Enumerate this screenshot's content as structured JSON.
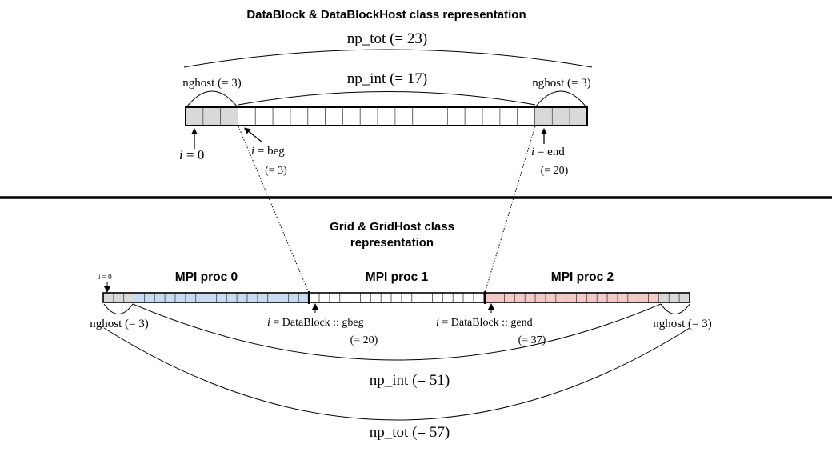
{
  "top": {
    "title": "DataBlock & DataBlockHost class representation",
    "np_tot_label": "np_tot (= 23)",
    "np_int_label": "np_int (= 17)",
    "nghost_left_label": "nghost (= 3)",
    "nghost_right_label": "nghost (= 3)",
    "i0_var": "i",
    "i0_rest": " = 0",
    "ibeg_var": "i",
    "ibeg_rest": " = beg",
    "ibeg_value": "(= 3)",
    "iend_var": "i",
    "iend_rest": " = end",
    "iend_value": "(= 20)",
    "cells": 23,
    "ghost_cells": 3,
    "ghost_color": "#d9d9d9",
    "cell_color": "#ffffff"
  },
  "bottom": {
    "title_line1": "Grid & GridHost class",
    "title_line2": "representation",
    "i0_var": "i",
    "i0_rest": " = 0",
    "procs": [
      {
        "label": "MPI proc 0",
        "color": "#c7dcf2"
      },
      {
        "label": "MPI proc 1",
        "color": "#ffffff"
      },
      {
        "label": "MPI proc 2",
        "color": "#f4c9c9"
      }
    ],
    "gbeg_var": "i",
    "gbeg_rest": " = DataBlock :: gbeg",
    "gbeg_value": "(= 20)",
    "gend_var": "i",
    "gend_rest": " = DataBlock :: gend",
    "gend_value": "(= 37)",
    "nghost_left_label": "nghost (= 3)",
    "nghost_right_label": "nghost (= 3)",
    "np_int_label": "np_int (= 51)",
    "np_tot_label": "np_tot (= 57)",
    "cells": 57,
    "ghost_cells": 3,
    "ghost_color": "#d9d9d9"
  }
}
